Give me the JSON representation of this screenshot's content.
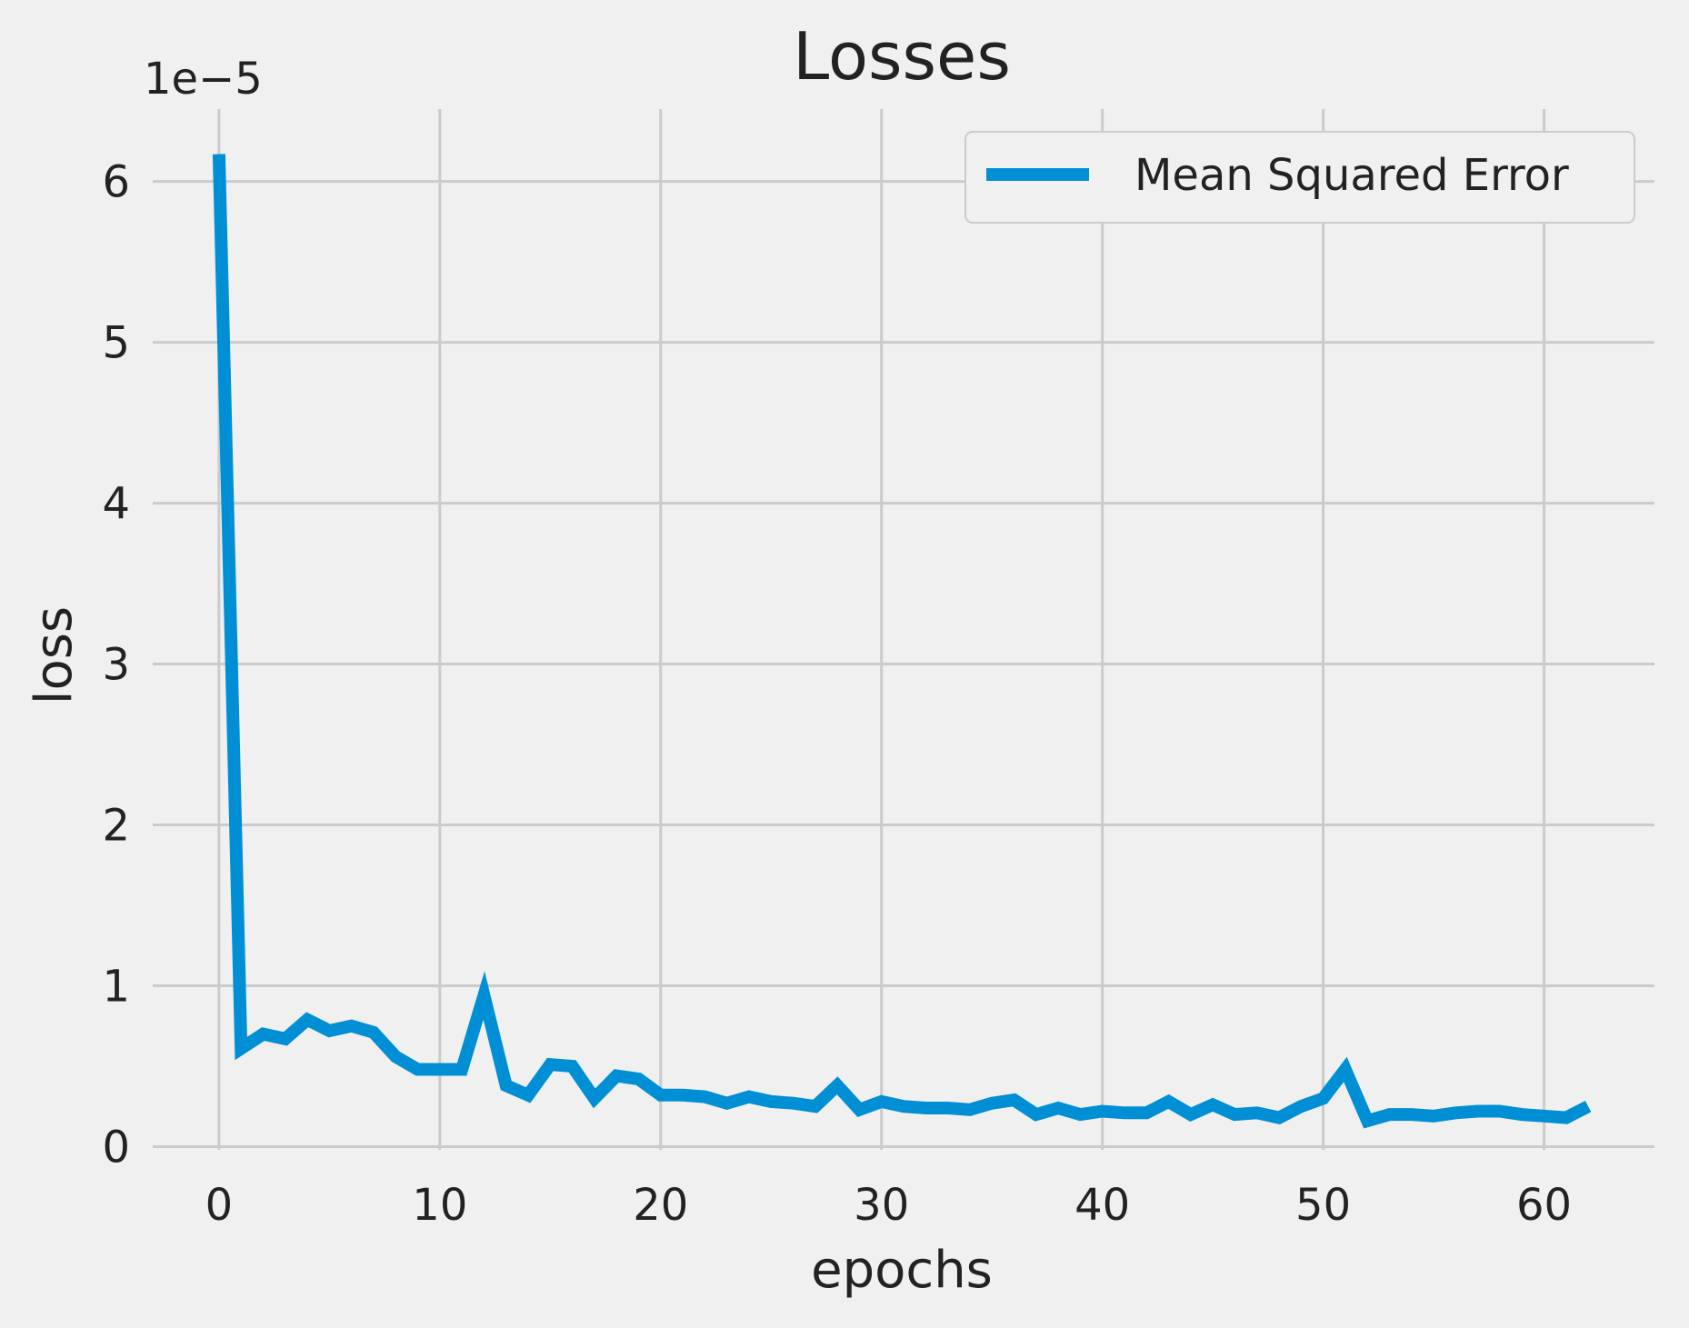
{
  "chart_data": {
    "type": "line",
    "title": "Losses",
    "xlabel": "epochs",
    "ylabel": "loss",
    "y_offset_label": "1e−5",
    "xlim": [
      -3,
      65
    ],
    "ylim": [
      -0.02,
      6.45
    ],
    "xticks": [
      0,
      10,
      20,
      30,
      40,
      50,
      60
    ],
    "yticks": [
      0,
      1,
      2,
      3,
      4,
      5,
      6
    ],
    "grid": true,
    "legend_position": "upper-right",
    "line_color": "#008fd5",
    "series": [
      {
        "name": "Mean Squared Error",
        "x": [
          0,
          1,
          2,
          3,
          4,
          5,
          6,
          7,
          8,
          9,
          10,
          11,
          12,
          13,
          14,
          15,
          16,
          17,
          18,
          19,
          20,
          21,
          22,
          23,
          24,
          25,
          26,
          27,
          28,
          29,
          30,
          31,
          32,
          33,
          34,
          35,
          36,
          37,
          38,
          39,
          40,
          41,
          42,
          43,
          44,
          45,
          46,
          47,
          48,
          49,
          50,
          51,
          52,
          53,
          54,
          55,
          56,
          57,
          58,
          59,
          60,
          61,
          62
        ],
        "values": [
          6.17,
          0.61,
          0.7,
          0.67,
          0.79,
          0.72,
          0.75,
          0.71,
          0.56,
          0.48,
          0.48,
          0.48,
          0.94,
          0.38,
          0.32,
          0.51,
          0.5,
          0.3,
          0.44,
          0.42,
          0.32,
          0.32,
          0.31,
          0.27,
          0.31,
          0.28,
          0.27,
          0.25,
          0.38,
          0.23,
          0.28,
          0.25,
          0.24,
          0.24,
          0.23,
          0.27,
          0.29,
          0.2,
          0.24,
          0.2,
          0.22,
          0.21,
          0.21,
          0.28,
          0.2,
          0.26,
          0.2,
          0.21,
          0.18,
          0.25,
          0.3,
          0.48,
          0.16,
          0.2,
          0.2,
          0.19,
          0.21,
          0.22,
          0.22,
          0.2,
          0.19,
          0.18,
          0.25
        ]
      }
    ]
  }
}
